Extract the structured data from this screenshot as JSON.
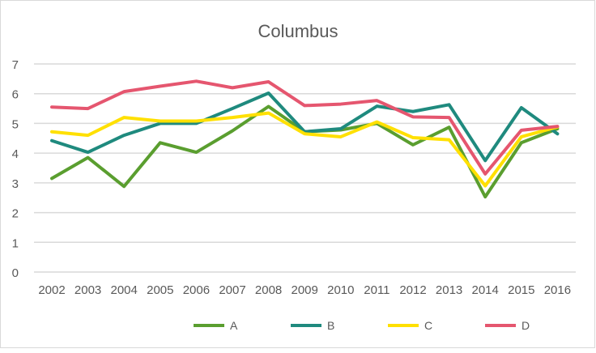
{
  "chart_data": {
    "type": "line",
    "title": "Columbus",
    "xlabel": "",
    "ylabel": "",
    "ylim": [
      0,
      7
    ],
    "yticks": [
      "0",
      "1",
      "2",
      "3",
      "4",
      "5",
      "6",
      "7"
    ],
    "grid": true,
    "legend_position": "bottom",
    "categories": [
      "2002",
      "2003",
      "2004",
      "2005",
      "2006",
      "2007",
      "2008",
      "2009",
      "2010",
      "2011",
      "2012",
      "2013",
      "2014",
      "2015",
      "2016"
    ],
    "series": [
      {
        "name": "A",
        "color": "#5a9e2f",
        "values": [
          3.15,
          3.85,
          2.88,
          4.35,
          4.03,
          4.75,
          5.57,
          4.72,
          4.78,
          5.0,
          4.28,
          4.87,
          2.53,
          4.35,
          4.82
        ]
      },
      {
        "name": "B",
        "color": "#1f8a7e",
        "values": [
          4.42,
          4.03,
          4.6,
          5.0,
          5.0,
          5.5,
          6.02,
          4.72,
          4.82,
          5.58,
          5.4,
          5.63,
          3.75,
          5.53,
          4.65
        ]
      },
      {
        "name": "C",
        "color": "#ffe000",
        "values": [
          4.72,
          4.6,
          5.2,
          5.08,
          5.08,
          5.2,
          5.35,
          4.65,
          4.55,
          5.05,
          4.52,
          4.45,
          2.9,
          4.55,
          4.88
        ]
      },
      {
        "name": "D",
        "color": "#e5566f",
        "values": [
          5.55,
          5.5,
          6.07,
          6.25,
          6.42,
          6.2,
          6.4,
          5.6,
          5.65,
          5.77,
          5.22,
          5.2,
          3.3,
          4.77,
          4.9
        ]
      }
    ]
  }
}
